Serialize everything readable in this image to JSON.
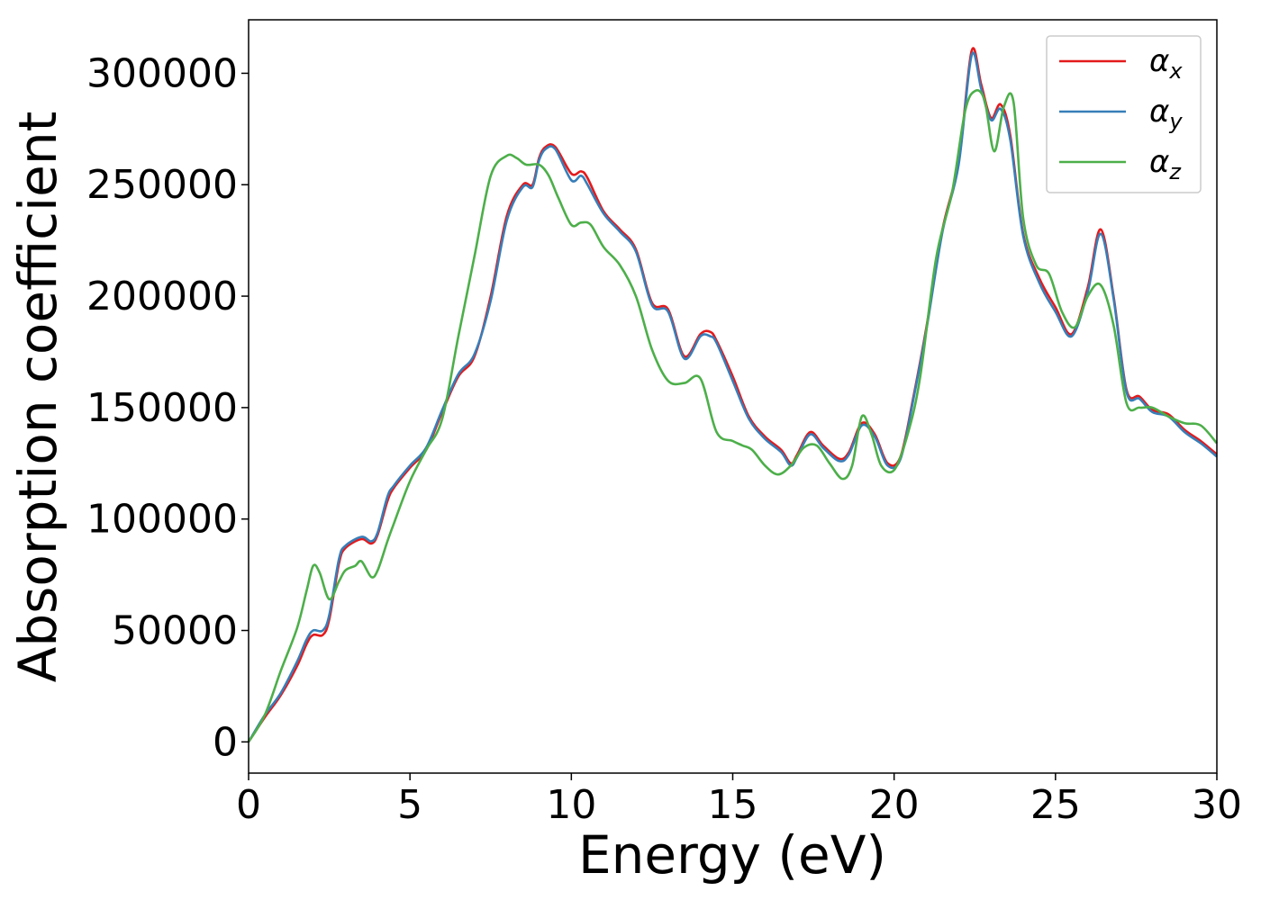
{
  "chart_data": {
    "type": "line",
    "title": "",
    "xlabel": "Energy (eV)",
    "ylabel": "Absorption coefficient",
    "xlim": [
      0,
      30
    ],
    "ylim": [
      -14000,
      324000
    ],
    "x_ticks": [
      0,
      5,
      10,
      15,
      20,
      25,
      30
    ],
    "x_tick_labels": [
      "0",
      "5",
      "10",
      "15",
      "20",
      "25",
      "30"
    ],
    "y_ticks": [
      0,
      50000,
      100000,
      150000,
      200000,
      250000,
      300000
    ],
    "y_tick_labels": [
      "0",
      "50000",
      "100000",
      "150000",
      "200000",
      "250000",
      "300000"
    ],
    "grid": false,
    "legend_position": "top-right",
    "series": [
      {
        "name": "α",
        "subscript": "x",
        "color": "#e41a1c",
        "x": [
          0,
          0.5,
          1,
          1.5,
          1.8,
          2,
          2.3,
          2.5,
          2.8,
          3,
          3.5,
          3.8,
          4,
          4.3,
          4.5,
          5,
          5.5,
          6,
          6.5,
          7,
          7.5,
          8,
          8.5,
          8.8,
          9,
          9.2,
          9.5,
          10,
          10.3,
          10.5,
          11,
          11.5,
          12,
          12.5,
          13,
          13.5,
          14,
          14.3,
          14.5,
          15,
          15.5,
          16,
          16.5,
          16.8,
          17,
          17.4,
          17.8,
          18.3,
          18.6,
          19,
          19.4,
          19.8,
          20.2,
          20.6,
          21,
          21.5,
          22,
          22.4,
          22.7,
          23,
          23.3,
          23.6,
          24,
          24.5,
          25,
          25.5,
          26,
          26.4,
          26.8,
          27.2,
          27.6,
          28,
          28.5,
          29,
          29.5,
          30
        ],
        "y": [
          0,
          11000,
          21000,
          34000,
          44000,
          48000,
          48000,
          55000,
          80000,
          87000,
          91000,
          89000,
          93000,
          108000,
          114000,
          123000,
          131000,
          148000,
          164000,
          173000,
          200000,
          236000,
          250000,
          250000,
          262000,
          267000,
          267000,
          255000,
          256000,
          253000,
          238000,
          230000,
          221000,
          197000,
          194000,
          173000,
          183000,
          184000,
          180000,
          164000,
          146000,
          137000,
          131000,
          125000,
          129000,
          139000,
          133000,
          127000,
          130000,
          143000,
          138000,
          125000,
          128000,
          155000,
          186000,
          230000,
          260000,
          310000,
          295000,
          280000,
          286000,
          272000,
          228000,
          208000,
          195000,
          183000,
          204000,
          230000,
          200000,
          158000,
          155000,
          149000,
          147000,
          140000,
          135000,
          129000
        ]
      },
      {
        "name": "α",
        "subscript": "y",
        "color": "#377eb8",
        "x": [
          0,
          0.5,
          1,
          1.5,
          1.8,
          2,
          2.3,
          2.5,
          2.8,
          3,
          3.5,
          3.8,
          4,
          4.3,
          4.5,
          5,
          5.5,
          6,
          6.5,
          7,
          7.5,
          8,
          8.5,
          8.8,
          9,
          9.2,
          9.5,
          10,
          10.3,
          10.5,
          11,
          11.5,
          12,
          12.5,
          13,
          13.5,
          14,
          14.3,
          14.5,
          15,
          15.5,
          16,
          16.5,
          16.8,
          17,
          17.4,
          17.8,
          18.3,
          18.6,
          19,
          19.4,
          19.8,
          20.2,
          20.6,
          21,
          21.5,
          22,
          22.4,
          22.7,
          23,
          23.3,
          23.6,
          24,
          24.5,
          25,
          25.5,
          26,
          26.4,
          26.8,
          27.2,
          27.6,
          28,
          28.5,
          29,
          29.5,
          30
        ],
        "y": [
          0,
          12000,
          22000,
          36000,
          46000,
          50000,
          50000,
          57000,
          82000,
          88000,
          92000,
          90000,
          94000,
          110000,
          115000,
          124000,
          132000,
          149000,
          165000,
          174000,
          198000,
          234000,
          249000,
          249000,
          261000,
          266000,
          266000,
          252000,
          254000,
          250000,
          237000,
          229000,
          220000,
          196000,
          193000,
          172000,
          182000,
          182000,
          179000,
          162000,
          145000,
          136000,
          130000,
          124000,
          128000,
          138000,
          132000,
          126000,
          129000,
          142000,
          137000,
          124000,
          127000,
          154000,
          185000,
          229000,
          259000,
          308000,
          293000,
          279000,
          284000,
          270000,
          227000,
          206000,
          193000,
          182000,
          202000,
          228000,
          199000,
          157000,
          154000,
          148000,
          146000,
          139000,
          134000,
          128000
        ]
      },
      {
        "name": "α",
        "subscript": "z",
        "color": "#4daf4a",
        "x": [
          0,
          0.5,
          1,
          1.5,
          1.8,
          2,
          2.2,
          2.5,
          2.8,
          3,
          3.3,
          3.5,
          3.8,
          4,
          4.3,
          4.5,
          5,
          5.5,
          6,
          6.5,
          7,
          7.5,
          8,
          8.3,
          8.6,
          9,
          9.3,
          9.6,
          10,
          10.3,
          10.6,
          11,
          11.5,
          12,
          12.5,
          13,
          13.5,
          14,
          14.5,
          15,
          15.3,
          15.6,
          16,
          16.4,
          16.8,
          17.2,
          17.6,
          18,
          18.4,
          18.7,
          19,
          19.3,
          19.6,
          20,
          20.4,
          20.8,
          21.3,
          21.8,
          22.2,
          22.5,
          22.8,
          23.1,
          23.4,
          23.7,
          24,
          24.4,
          24.8,
          25.2,
          25.6,
          26,
          26.4,
          26.8,
          27.2,
          27.6,
          28,
          28.5,
          29,
          29.5,
          30
        ],
        "y": [
          0,
          12000,
          32000,
          51000,
          68000,
          79000,
          76000,
          64000,
          72000,
          77000,
          79000,
          81000,
          74000,
          77000,
          90000,
          98000,
          117000,
          131000,
          145000,
          182000,
          218000,
          254000,
          263000,
          262000,
          259000,
          259000,
          254000,
          244000,
          232000,
          233000,
          232000,
          222000,
          214000,
          200000,
          176000,
          162000,
          161000,
          163000,
          139000,
          135000,
          133000,
          131000,
          124000,
          120000,
          124000,
          132000,
          133000,
          125000,
          118000,
          124000,
          146000,
          138000,
          124000,
          122000,
          137000,
          163000,
          217000,
          247000,
          283000,
          292000,
          288000,
          265000,
          285000,
          287000,
          235000,
          214000,
          210000,
          193000,
          186000,
          200000,
          205000,
          187000,
          152000,
          150000,
          150000,
          146000,
          143000,
          142000,
          134000
        ]
      }
    ]
  }
}
